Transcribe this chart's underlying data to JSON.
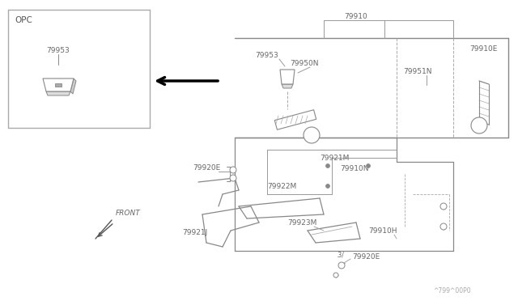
{
  "bg_color": "#ffffff",
  "line_color": "#777777",
  "thin_color": "#888888",
  "text_color": "#666666",
  "title_bottom": "^799^00P0",
  "opc_label": "OPC",
  "opc_part": "79953",
  "font_size": 6.5
}
